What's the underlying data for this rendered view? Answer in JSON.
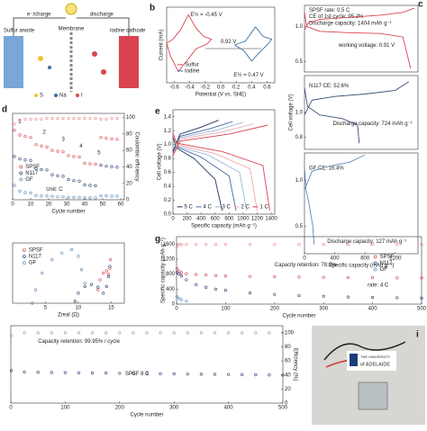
{
  "panels": {
    "a": {
      "label_charge": "e⁻/charge",
      "label_discharge": "discharge",
      "anode": "Sulfur anode",
      "membrane": "Membrane",
      "cathode": "Iodine cathode",
      "legend": [
        "S",
        "Na",
        "I"
      ]
    },
    "i": {
      "label": "i",
      "university": "THE UNIVERSITY",
      "name": "of ADELAIDE"
    }
  },
  "chart_data": [
    {
      "type": "line",
      "panel": "b",
      "xlabel": "Potential (V vs. SHE)",
      "ylabel": "Current (mA)",
      "xlim": [
        -0.7,
        0.7
      ],
      "ylim": [
        -2,
        2
      ],
      "xticks": [
        -0.6,
        -0.4,
        -0.2,
        {
          "value": 0,
          "label": "0.0"
        },
        0.2,
        0.4,
        0.6
      ],
      "annotations": [
        "E½ = -0.45 V",
        "0.92 V",
        "E½ = 0.47 V"
      ],
      "series": [
        {
          "name": "Sulfur",
          "color": "#d9434f",
          "x": [
            -0.7,
            -0.62,
            -0.52,
            -0.42,
            -0.32,
            -0.22,
            -0.12,
            -0.18,
            -0.32,
            -0.45,
            -0.55,
            -0.65,
            -0.7
          ],
          "values": [
            0.1,
            0.3,
            0.8,
            1.6,
            0.9,
            0.45,
            0.3,
            0.05,
            -0.2,
            -0.9,
            -1.4,
            -0.6,
            0.1
          ]
        },
        {
          "name": "Iodine",
          "color": "#3a6ea5",
          "x": [
            0.18,
            0.32,
            0.45,
            0.55,
            0.66,
            0.6,
            0.5,
            0.4,
            0.3,
            0.18
          ],
          "values": [
            0,
            0.2,
            0.95,
            0.45,
            0.3,
            0,
            -0.4,
            -0.85,
            -0.3,
            0
          ]
        }
      ]
    },
    {
      "type": "line",
      "panel": "c",
      "xlim": [
        0,
        1500
      ],
      "ylim": [
        0.35,
        1.3
      ],
      "yticks": [
        {
          "value": 1,
          "label": "1.0"
        },
        0.5
      ],
      "annotations": [
        "SPSF  rate: 0.5 C",
        "CE of 1st cycle: 95.2%",
        "Discharge capacity: 1404 mAh g⁻¹",
        "working voltage: 0.91 V"
      ],
      "series": [
        {
          "color": "#d9434f",
          "x": [
            0,
            50,
            200,
            600,
            1000,
            1300,
            1450,
            null,
            0,
            30,
            200,
            600,
            1000,
            1300,
            1404
          ],
          "values": [
            0.95,
            1.05,
            1.1,
            1.13,
            1.16,
            1.2,
            1.26,
            null,
            1.2,
            1,
            0.93,
            0.91,
            0.9,
            0.85,
            0.4
          ]
        }
      ]
    },
    {
      "type": "line",
      "ylabel": "Cell voltage (V)",
      "xlim": [
        0,
        1500
      ],
      "ylim": [
        0.7,
        1.3
      ],
      "yticks": [
        {
          "value": 1,
          "label": "1.0"
        },
        0.8
      ],
      "annotations": [
        "N117  CE: 52.6%",
        "Discharge capacity: 724 mAh g⁻¹"
      ],
      "series": [
        {
          "color": "#3a4f7a",
          "x": [
            0,
            100,
            400,
            800,
            1200,
            1380,
            null,
            0,
            40,
            200,
            500,
            700,
            724
          ],
          "values": [
            0.98,
            1.1,
            1.13,
            1.15,
            1.18,
            1.25,
            null,
            1.2,
            1.05,
            0.98,
            0.95,
            0.9,
            0.75
          ]
        }
      ]
    },
    {
      "type": "line",
      "xlabel": "Specific capacity (mAh g⁻¹)",
      "xlim": [
        0,
        1500
      ],
      "ylim": [
        0.2,
        1.3
      ],
      "xticks": [
        0,
        400,
        800,
        1200
      ],
      "yticks": [
        {
          "value": 1,
          "label": "1.0"
        },
        0.5
      ],
      "annotations": [
        "GF  CE: 16.4%",
        "Discharge capacity: 127 mAh g⁻¹"
      ],
      "series": [
        {
          "color": "#5b8bb8",
          "x": [
            0,
            100,
            300,
            600,
            800,
            null,
            0,
            20,
            60,
            110,
            127
          ],
          "values": [
            0.9,
            1.1,
            1.15,
            1.2,
            1.28,
            null,
            1.15,
            0.9,
            0.75,
            0.5,
            0.3
          ]
        }
      ]
    },
    {
      "type": "scatter",
      "panel": "d",
      "xlabel": "Cycle number",
      "y2label": "Coulombic efficiency",
      "xlim": [
        0,
        62
      ],
      "ylim": [
        0,
        1800
      ],
      "y2lim": [
        0,
        105
      ],
      "xticks": [
        0,
        10,
        20,
        30,
        40,
        50,
        60
      ],
      "y2ticks": [
        0,
        20,
        40,
        60,
        80,
        100
      ],
      "annotations": [
        "1",
        "2",
        "3",
        "4",
        "5",
        "Unit: C"
      ],
      "x": [
        1,
        4,
        7,
        10,
        13,
        16,
        19,
        22,
        25,
        28,
        31,
        34,
        37,
        40,
        43,
        46,
        49,
        52,
        55,
        58
      ],
      "series": [
        {
          "name": "SPSF",
          "color": "#d9434f",
          "values": [
            1450,
            1350,
            1320,
            1300,
            1150,
            1120,
            1100,
            1030,
            1010,
            1000,
            920,
            900,
            890,
            760,
            750,
            740,
            1300,
            1280,
            1270,
            1260
          ]
        },
        {
          "name": "N117",
          "color": "#2b3f73",
          "values": [
            900,
            850,
            830,
            820,
            650,
            630,
            620,
            520,
            500,
            490,
            420,
            400,
            390,
            310,
            300,
            290,
            720,
            700,
            690,
            680
          ]
        },
        {
          "name": "GF",
          "color": "#5b8bb8",
          "values": [
            300,
            180,
            150,
            140,
            90,
            80,
            80,
            70,
            60,
            60,
            50,
            50,
            50,
            40,
            40,
            40,
            80,
            80,
            75,
            75
          ]
        },
        {
          "color": "#e88a92",
          "axis": "y2",
          "values": [
            92,
            97,
            98,
            98,
            98,
            98,
            99,
            99,
            99,
            99,
            99,
            99,
            99,
            99,
            99,
            99,
            98,
            98,
            99,
            99
          ]
        }
      ]
    },
    {
      "type": "line",
      "panel": "e",
      "xlabel": "Specific capacity (mAh g⁻¹)",
      "ylabel": "Cell voltage (V)",
      "xlim": [
        0,
        1450
      ],
      "ylim": [
        0,
        1.5
      ],
      "xticks": [
        0,
        200,
        400,
        600,
        800,
        1000,
        1200,
        1400
      ],
      "yticks": [
        {
          "value": 0,
          "label": "0.0"
        },
        0.2,
        0.4,
        0.6,
        0.8,
        {
          "value": 1,
          "label": "1.0"
        },
        1.2,
        1.4
      ],
      "series": [
        {
          "name": "5 C",
          "color": "#1f2f5a",
          "x": [
            0,
            100,
            400,
            650,
            null,
            0,
            50,
            300,
            600,
            700
          ],
          "values": [
            0.9,
            1.15,
            1.25,
            1.35,
            null,
            1.1,
            0.95,
            0.8,
            0.5,
            0.05
          ]
        },
        {
          "name": "4 C",
          "color": "#3e6aa8",
          "x": [
            0,
            100,
            500,
            850,
            null,
            0,
            50,
            400,
            800,
            900
          ],
          "values": [
            0.88,
            1.12,
            1.22,
            1.33,
            null,
            1.12,
            0.97,
            0.82,
            0.55,
            0.05
          ]
        },
        {
          "name": "3 C",
          "color": "#9bb8d9",
          "x": [
            0,
            100,
            600,
            1000,
            null,
            0,
            50,
            500,
            950,
            1050
          ],
          "values": [
            0.86,
            1.1,
            1.2,
            1.32,
            null,
            1.14,
            0.98,
            0.85,
            0.6,
            0.05
          ]
        },
        {
          "name": "2 C",
          "color": "#f0a8b0",
          "x": [
            0,
            100,
            700,
            1150,
            null,
            0,
            50,
            600,
            1100,
            1200
          ],
          "values": [
            0.85,
            1.08,
            1.18,
            1.3,
            null,
            1.15,
            1,
            0.87,
            0.65,
            0.05
          ]
        },
        {
          "name": "1 C",
          "color": "#d9434f",
          "x": [
            0,
            100,
            800,
            1350,
            null,
            0,
            50,
            700,
            1280,
            1380
          ],
          "values": [
            0.84,
            1.05,
            1.15,
            1.28,
            null,
            1.17,
            1.02,
            0.9,
            0.7,
            0.05
          ]
        }
      ]
    },
    {
      "type": "scatter",
      "xlabel": "Zreal (Ω)",
      "xlim": [
        0,
        17
      ],
      "ylim": [
        0,
        9
      ],
      "xticks": [
        5,
        10,
        15
      ],
      "series": [
        {
          "name": "SPSF",
          "color": "#d9434f",
          "x": [
            13,
            13.3,
            13.8,
            14.3,
            14.6,
            14.8,
            14.9
          ],
          "values": [
            2,
            3.5,
            4.5,
            4.8,
            4.3,
            5.2,
            6.5
          ]
        },
        {
          "name": "N117",
          "color": "#2b3f73",
          "x": [
            9.5,
            10,
            11,
            12,
            13,
            13.8,
            14.3,
            14.6,
            14.8
          ],
          "values": [
            0.3,
            1.5,
            2.5,
            2.8,
            2.4,
            1.5,
            2.5,
            4,
            5.5
          ]
        },
        {
          "name": "GF",
          "color": "#5b8bb8",
          "x": [
            3,
            3.5,
            4.5,
            6,
            7.5,
            9,
            10,
            10.5,
            11
          ],
          "values": [
            0,
            2,
            4.5,
            6.5,
            7.5,
            8,
            7,
            5,
            3
          ]
        }
      ]
    },
    {
      "type": "scatter",
      "panel": "g",
      "xlabel": "Cycle number",
      "ylabel": "Specific capacity (mAh g⁻¹)",
      "xlim": [
        0,
        500
      ],
      "ylim": [
        0,
        1800
      ],
      "y2lim": [
        0,
        112
      ],
      "xticks": [
        0,
        100,
        200,
        300,
        400,
        500
      ],
      "yticks": [
        0,
        400,
        800,
        1200,
        1600
      ],
      "annotations": [
        "Capacity retention: 78.0%",
        "rate: 4 C"
      ],
      "x": [
        1,
        5,
        10,
        20,
        40,
        60,
        80,
        100,
        150,
        200,
        250,
        300,
        350,
        400,
        450,
        500
      ],
      "series": [
        {
          "name": "SPSF",
          "color": "#d9434f",
          "values": [
            950,
            880,
            840,
            810,
            790,
            780,
            760,
            750,
            740,
            730,
            720,
            715,
            710,
            705,
            700,
            700
          ]
        },
        {
          "name": "N117",
          "color": "#2b3f73",
          "values": [
            850,
            800,
            750,
            650,
            520,
            450,
            400,
            370,
            300,
            260,
            230,
            210,
            190,
            180,
            170,
            160
          ]
        },
        {
          "name": "GF",
          "color": "#5b8bb8",
          "values": [
            200,
            150,
            120,
            80,
            null,
            null,
            null,
            null,
            null,
            null,
            null,
            null,
            null,
            null,
            null,
            null
          ]
        },
        {
          "color": "#e88a92",
          "axis": "y2",
          "values": [
            96,
            99,
            99,
            99,
            99,
            99,
            99,
            99,
            99,
            99,
            99,
            99,
            99,
            99,
            99,
            99
          ]
        }
      ]
    },
    {
      "type": "scatter",
      "xlabel": "Cycle number",
      "y2label": "Efficiency (%)",
      "xlim": [
        0,
        500
      ],
      "ylim": [
        0,
        1000
      ],
      "y2lim": [
        0,
        110
      ],
      "xticks": [
        0,
        100,
        200,
        300,
        400,
        500
      ],
      "y2ticks": [
        0,
        20,
        40,
        60,
        80,
        100
      ],
      "annotations": [
        "Capacity retention: 99.95% / cycle",
        "SPSF    8 C"
      ],
      "x": [
        1,
        25,
        50,
        75,
        100,
        125,
        150,
        175,
        200,
        225,
        250,
        275,
        300,
        325,
        350,
        375,
        400,
        425,
        450,
        475,
        500
      ],
      "series": [
        {
          "color": "#2b3f73",
          "values": [
            420,
            400,
            398,
            396,
            394,
            392,
            390,
            388,
            386,
            384,
            382,
            380,
            378,
            376,
            374,
            372,
            370,
            368,
            366,
            364,
            362
          ]
        },
        {
          "color": "#9aa0a6",
          "axis": "y2",
          "values": [
            96,
            99.9,
            99.9,
            99.9,
            99.9,
            99.9,
            99.9,
            99.9,
            99.9,
            99.9,
            99.9,
            99.9,
            99.9,
            99.9,
            99.9,
            99.9,
            99.9,
            99.9,
            99.9,
            99.9,
            99.9
          ]
        }
      ]
    }
  ]
}
